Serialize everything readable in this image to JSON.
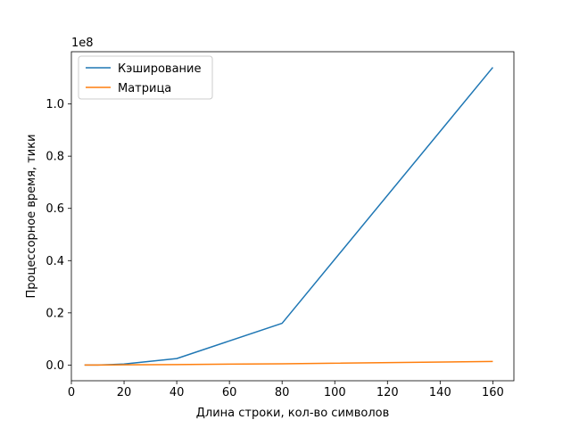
{
  "chart_data": {
    "type": "line",
    "title": "",
    "xlabel": "Длина строки, кол-во символов",
    "ylabel": "Процессорное время, тики",
    "y_offset_label": "1e8",
    "y_scale": 100000000,
    "xlim": [
      0,
      168
    ],
    "ylim": [
      -0.06,
      1.2
    ],
    "x_ticks": [
      0,
      20,
      40,
      60,
      80,
      100,
      120,
      140,
      160
    ],
    "x_tick_labels": [
      "0",
      "20",
      "40",
      "60",
      "80",
      "100",
      "120",
      "140",
      "160"
    ],
    "y_ticks": [
      0.0,
      0.2,
      0.4,
      0.6,
      0.8,
      1.0
    ],
    "y_tick_labels": [
      "0.0",
      "0.2",
      "0.4",
      "0.6",
      "0.8",
      "1.0"
    ],
    "grid": false,
    "legend_position": "top-left",
    "series": [
      {
        "name": "Кэширование",
        "color": "#1f77b4",
        "x": [
          5,
          10,
          20,
          40,
          80,
          160
        ],
        "y": [
          0.0,
          0.0,
          0.004,
          0.025,
          0.16,
          1.14
        ]
      },
      {
        "name": "Матрица",
        "color": "#ff7f0e",
        "x": [
          5,
          10,
          20,
          40,
          80,
          160
        ],
        "y": [
          0.0,
          0.0,
          0.001,
          0.002,
          0.005,
          0.014
        ]
      }
    ]
  }
}
